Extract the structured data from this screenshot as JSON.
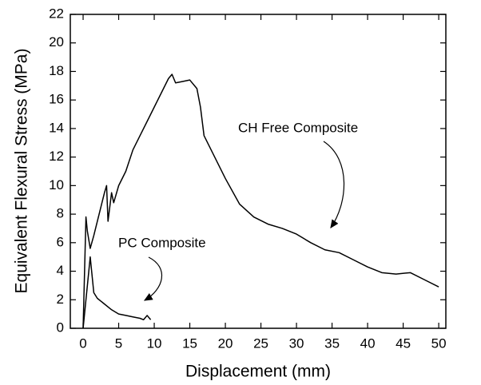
{
  "chart_data": {
    "type": "line",
    "xlabel": "Displacement (mm)",
    "ylabel": "Equivalent Flexural Stress (MPa)",
    "xlim": [
      -1.8,
      51
    ],
    "ylim": [
      0,
      22
    ],
    "xticks": [
      0,
      5,
      10,
      15,
      20,
      25,
      30,
      35,
      40,
      45,
      50
    ],
    "yticks": [
      0,
      2,
      4,
      6,
      8,
      10,
      12,
      14,
      16,
      18,
      20,
      22
    ],
    "grid": false,
    "series": [
      {
        "name": "CH Free Composite",
        "color": "#000000",
        "x": [
          0,
          0.4,
          0.6,
          1.0,
          1.5,
          2,
          2.5,
          3,
          3.3,
          3.5,
          4,
          4.3,
          5,
          6,
          7,
          8,
          9,
          10,
          11,
          12,
          12.5,
          13,
          14,
          15,
          16,
          16.5,
          17,
          18,
          20,
          22,
          24,
          26,
          28,
          30,
          32,
          34,
          36,
          38,
          40,
          42,
          44,
          46,
          48,
          50
        ],
        "values": [
          0,
          7.8,
          6.8,
          5.6,
          6.5,
          7.5,
          8.5,
          9.5,
          10,
          7.5,
          9.5,
          8.8,
          10,
          11,
          12.5,
          13.5,
          14.5,
          15.5,
          16.5,
          17.5,
          17.8,
          17.2,
          17.3,
          17.4,
          16.8,
          15.5,
          13.5,
          12.5,
          10.5,
          8.7,
          7.8,
          7.3,
          7.0,
          6.6,
          6.0,
          5.5,
          5.3,
          4.8,
          4.3,
          3.9,
          3.8,
          3.9,
          3.4,
          2.9
        ]
      },
      {
        "name": "PC Composite",
        "color": "#000000",
        "x": [
          0,
          0.8,
          1,
          1.2,
          1.5,
          2,
          3,
          4,
          5,
          6,
          7,
          8,
          8.5,
          9,
          9.5
        ],
        "values": [
          0,
          4,
          5,
          4,
          2.5,
          2.1,
          1.7,
          1.3,
          1.0,
          0.9,
          0.8,
          0.7,
          0.6,
          0.9,
          0.6
        ]
      }
    ]
  }
}
